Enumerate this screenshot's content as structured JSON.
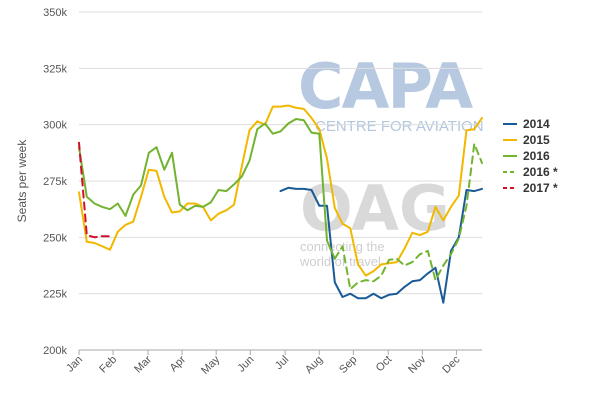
{
  "watermarks": {
    "capa": "CAPA",
    "capa_sub": "CENTRE FOR AVIATION",
    "oag": "OAG",
    "oag_sub": "connecting the world of travel"
  },
  "colors": {
    "grid": "#dddddd",
    "axis": "#aaaaaa",
    "capa": "#9fb8d6",
    "oag": "#c9c9c9"
  },
  "chart_data": {
    "type": "line",
    "ylabel": "Seats per week",
    "xlabel": "",
    "ylim": [
      200000,
      350000
    ],
    "yticks": [
      200000,
      225000,
      250000,
      275000,
      300000,
      325000,
      350000
    ],
    "ytick_labels": [
      "200k",
      "225k",
      "250k",
      "275k",
      "300k",
      "325k",
      "350k"
    ],
    "xlim": [
      1,
      53
    ],
    "xticks": [
      1,
      5.4,
      9.9,
      14.3,
      18.7,
      23.1,
      27.6,
      32,
      36.4,
      40.9,
      45.3,
      49.7
    ],
    "xtick_labels": [
      "Jan",
      "Feb",
      "Mar",
      "Apr",
      "May",
      "Jun",
      "Jul",
      "Aug",
      "Sep",
      "Oct",
      "Nov",
      "Dec"
    ],
    "grid": "horizontal",
    "legend_position": "right",
    "series": [
      {
        "name": "2014",
        "color": "#1a5a96",
        "dash": "solid",
        "points": [
          [
            27,
            270500
          ],
          [
            28,
            272000
          ],
          [
            29,
            271500
          ],
          [
            30,
            271500
          ],
          [
            31,
            271000
          ],
          [
            32,
            264000
          ],
          [
            33,
            264000
          ],
          [
            34,
            230000
          ],
          [
            35,
            223500
          ],
          [
            36,
            225000
          ],
          [
            37,
            223000
          ],
          [
            38,
            223000
          ],
          [
            39,
            225000
          ],
          [
            40,
            223000
          ],
          [
            41,
            224500
          ],
          [
            42,
            225000
          ],
          [
            43,
            228000
          ],
          [
            44,
            230500
          ],
          [
            45,
            231000
          ],
          [
            46,
            234000
          ],
          [
            47,
            236500
          ],
          [
            48,
            221000
          ],
          [
            49,
            244000
          ],
          [
            50,
            250000
          ],
          [
            51,
            271000
          ],
          [
            52,
            270500
          ],
          [
            53,
            271500
          ]
        ]
      },
      {
        "name": "2015",
        "color": "#f2b800",
        "dash": "solid",
        "points": [
          [
            1,
            270000
          ],
          [
            2,
            248000
          ],
          [
            3,
            247500
          ],
          [
            4,
            246000
          ],
          [
            5,
            244500
          ],
          [
            6,
            252500
          ],
          [
            7,
            255500
          ],
          [
            8,
            257000
          ],
          [
            9,
            268000
          ],
          [
            10,
            280000
          ],
          [
            11,
            279500
          ],
          [
            12,
            268000
          ],
          [
            13,
            261000
          ],
          [
            14,
            261500
          ],
          [
            15,
            265000
          ],
          [
            16,
            265000
          ],
          [
            17,
            263500
          ],
          [
            18,
            257500
          ],
          [
            19,
            260500
          ],
          [
            20,
            262000
          ],
          [
            21,
            264500
          ],
          [
            22,
            281500
          ],
          [
            23,
            297500
          ],
          [
            24,
            301500
          ],
          [
            25,
            300000
          ],
          [
            26,
            308000
          ],
          [
            27,
            308000
          ],
          [
            28,
            308500
          ],
          [
            29,
            307500
          ],
          [
            30,
            307000
          ],
          [
            31,
            303000
          ],
          [
            32,
            298000
          ],
          [
            33,
            285000
          ],
          [
            34,
            263000
          ],
          [
            35,
            256000
          ],
          [
            36,
            254000
          ],
          [
            37,
            238000
          ],
          [
            38,
            233000
          ],
          [
            39,
            235000
          ],
          [
            40,
            238000
          ],
          [
            41,
            238500
          ],
          [
            42,
            239000
          ],
          [
            43,
            245000
          ],
          [
            44,
            252000
          ],
          [
            45,
            251000
          ],
          [
            46,
            252500
          ],
          [
            47,
            263500
          ],
          [
            48,
            257500
          ],
          [
            49,
            263500
          ],
          [
            50,
            268500
          ],
          [
            51,
            297500
          ],
          [
            52,
            298000
          ],
          [
            53,
            303000
          ]
        ]
      },
      {
        "name": "2016",
        "color": "#72b330",
        "dash": "solid",
        "points": [
          [
            1,
            290000
          ],
          [
            2,
            268000
          ],
          [
            3,
            265000
          ],
          [
            4,
            263500
          ],
          [
            5,
            262500
          ],
          [
            6,
            265000
          ],
          [
            7,
            259500
          ],
          [
            8,
            269000
          ],
          [
            9,
            273000
          ],
          [
            10,
            287500
          ],
          [
            11,
            290000
          ],
          [
            12,
            280000
          ],
          [
            13,
            287500
          ],
          [
            14,
            264500
          ],
          [
            15,
            262000
          ],
          [
            16,
            264000
          ],
          [
            17,
            263500
          ],
          [
            18,
            265500
          ],
          [
            19,
            271000
          ],
          [
            20,
            270500
          ],
          [
            21,
            273500
          ],
          [
            22,
            277000
          ],
          [
            23,
            284000
          ],
          [
            24,
            298000
          ],
          [
            25,
            300500
          ],
          [
            26,
            296000
          ],
          [
            27,
            297000
          ],
          [
            28,
            300500
          ],
          [
            29,
            302500
          ],
          [
            30,
            302000
          ],
          [
            31,
            296500
          ],
          [
            32,
            296000
          ],
          [
            33,
            248500
          ],
          [
            34,
            240500
          ]
        ]
      },
      {
        "name": "2016 *",
        "color": "#72b330",
        "dash": "dashed",
        "points": [
          [
            34,
            240500
          ],
          [
            35,
            246000
          ],
          [
            36,
            227000
          ],
          [
            37,
            230000
          ],
          [
            38,
            231000
          ],
          [
            39,
            230500
          ],
          [
            40,
            233000
          ],
          [
            41,
            240000
          ],
          [
            42,
            240500
          ],
          [
            43,
            237500
          ],
          [
            44,
            239000
          ],
          [
            45,
            242500
          ],
          [
            46,
            244000
          ],
          [
            47,
            231000
          ],
          [
            48,
            237500
          ],
          [
            49,
            242500
          ],
          [
            50,
            249500
          ],
          [
            51,
            264000
          ],
          [
            52,
            291500
          ],
          [
            53,
            283000
          ]
        ]
      },
      {
        "name": "2017 *",
        "color": "#d0102a",
        "dash": "dashed",
        "points": [
          [
            1,
            292000
          ],
          [
            2,
            251000
          ],
          [
            3,
            250000
          ],
          [
            4,
            250500
          ],
          [
            5,
            250500
          ]
        ]
      }
    ]
  }
}
